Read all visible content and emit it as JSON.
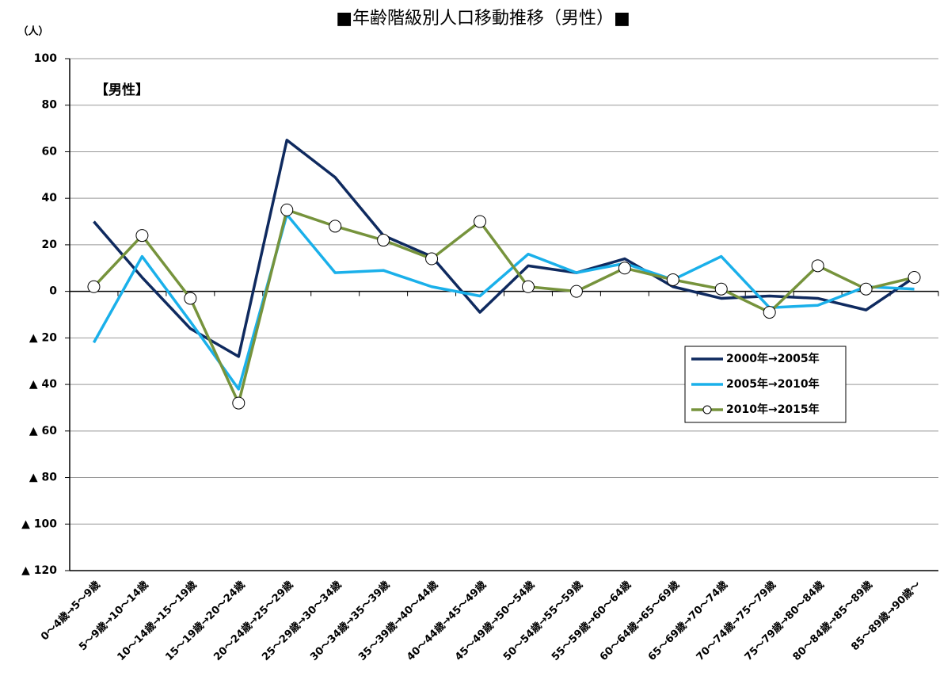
{
  "chart_data": {
    "type": "line",
    "title": "■年齢階級別人口移動推移（男性）■",
    "y_unit": "（人）",
    "annotation": "【男性】",
    "categories": [
      "0～4歳→5～9歳",
      "5～9歳→10～14歳",
      "10～14歳→15～19歳",
      "15～19歳→20～24歳",
      "20～24歳→25～29歳",
      "25～29歳→30～34歳",
      "30～34歳→35～39歳",
      "35～39歳→40～44歳",
      "40～44歳→45～49歳",
      "45～49歳→50～54歳",
      "50～54歳→55～59歳",
      "55～59歳→60～64歳",
      "60～64歳→65～69歳",
      "65～69歳→70～74歳",
      "70～74歳→75～79歳",
      "75～79歳→80～84歳",
      "80～84歳→85～89歳",
      "85～89歳→90歳～"
    ],
    "series": [
      {
        "name": "2000年→2005年",
        "color": "#0f2a5f",
        "marker": false,
        "values": [
          30,
          6,
          -16,
          -28,
          65,
          49,
          24,
          15,
          -9,
          11,
          8,
          14,
          2,
          -3,
          -2,
          -3,
          -8,
          6
        ]
      },
      {
        "name": "2005年→2010年",
        "color": "#1ab0ea",
        "marker": false,
        "values": [
          -22,
          15,
          -13,
          -42,
          33,
          8,
          9,
          2,
          -2,
          16,
          8,
          12,
          5,
          15,
          -7,
          -6,
          2,
          1
        ]
      },
      {
        "name": "2010年→2015年",
        "color": "#76933c",
        "marker": true,
        "values": [
          2,
          24,
          -3,
          -48,
          35,
          28,
          22,
          14,
          30,
          2,
          0,
          10,
          5,
          1,
          -9,
          11,
          1,
          6
        ]
      }
    ],
    "ylim": [
      -120,
      100
    ],
    "yticks": [
      {
        "value": -120,
        "label": "▲ 120"
      },
      {
        "value": -100,
        "label": "▲ 100"
      },
      {
        "value": -80,
        "label": "▲ 80"
      },
      {
        "value": -60,
        "label": "▲ 60"
      },
      {
        "value": -40,
        "label": "▲ 40"
      },
      {
        "value": -20,
        "label": "▲ 20"
      },
      0,
      20,
      40,
      60,
      80,
      100
    ],
    "grid": true
  }
}
